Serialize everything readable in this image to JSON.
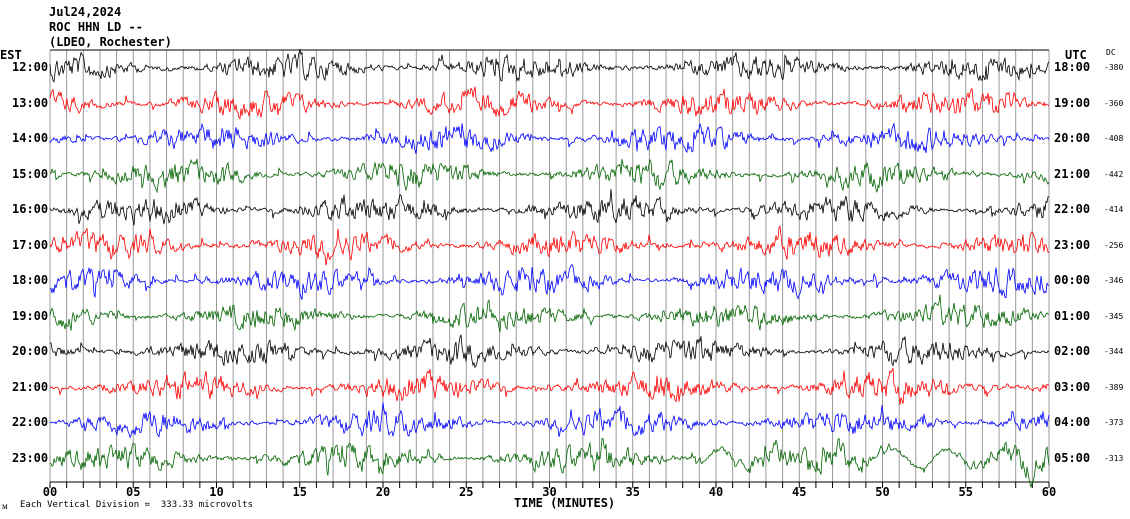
{
  "header": {
    "date": "Jul24,2024",
    "station": "ROC HHN LD --",
    "network": "(LDEO, Rochester)"
  },
  "chart_data": {
    "type": "line",
    "title": "",
    "left_axis_label": "EST",
    "right_axis_label": "UTC",
    "dc_label": "DC",
    "xlabel": "TIME (MINUTES)",
    "xlim": [
      0,
      60
    ],
    "x_ticks": [
      "00",
      "05",
      "10",
      "15",
      "20",
      "25",
      "30",
      "35",
      "40",
      "45",
      "50",
      "55",
      "60"
    ],
    "grid": "vertical every minute",
    "rows": [
      {
        "est": "12:00",
        "utc": "18:00",
        "dc": "-380",
        "color": "#000000"
      },
      {
        "est": "13:00",
        "utc": "19:00",
        "dc": "-360",
        "color": "#ff0000"
      },
      {
        "est": "14:00",
        "utc": "20:00",
        "dc": "-408",
        "color": "#0000ff"
      },
      {
        "est": "15:00",
        "utc": "21:00",
        "dc": "-442",
        "color": "#006400"
      },
      {
        "est": "16:00",
        "utc": "22:00",
        "dc": "-414",
        "color": "#000000"
      },
      {
        "est": "17:00",
        "utc": "23:00",
        "dc": "-256",
        "color": "#ff0000"
      },
      {
        "est": "18:00",
        "utc": "00:00",
        "dc": "-346",
        "color": "#0000ff"
      },
      {
        "est": "19:00",
        "utc": "01:00",
        "dc": "-345",
        "color": "#006400"
      },
      {
        "est": "20:00",
        "utc": "02:00",
        "dc": "-344",
        "color": "#000000"
      },
      {
        "est": "21:00",
        "utc": "03:00",
        "dc": "-389",
        "color": "#ff0000"
      },
      {
        "est": "22:00",
        "utc": "04:00",
        "dc": "-373",
        "color": "#0000ff"
      },
      {
        "est": "23:00",
        "utc": "05:00",
        "dc": "-313",
        "color": "#006400"
      }
    ]
  },
  "footer": {
    "scale_note": "Each Vertical Division =  333.33 microvolts"
  }
}
